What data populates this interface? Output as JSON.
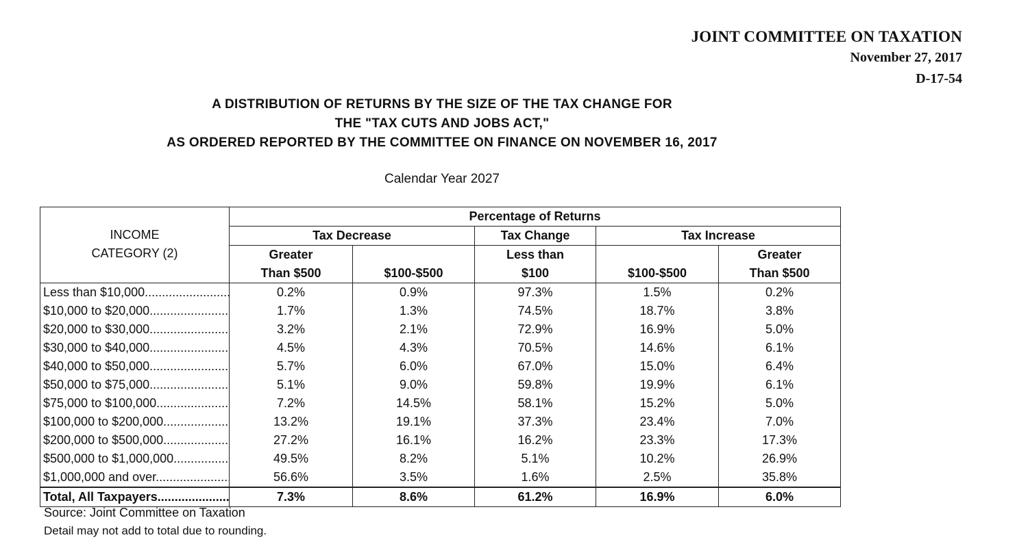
{
  "header": {
    "org": "JOINT COMMITTEE ON TAXATION",
    "date": "November 27, 2017",
    "doc_id": "D-17-54"
  },
  "title": {
    "line1": "A DISTRIBUTION OF RETURNS BY THE SIZE OF THE TAX CHANGE FOR",
    "line2": "THE \"TAX CUTS AND JOBS ACT,\"",
    "line3": "AS ORDERED REPORTED BY THE COMMITTEE ON FINANCE ON NOVEMBER 16, 2017",
    "subtitle": "Calendar Year 2027"
  },
  "table": {
    "income_header_1": "INCOME",
    "income_header_2": "CATEGORY (2)",
    "pct_header": "Percentage of Returns",
    "tax_decrease": "Tax Decrease",
    "tax_change": "Tax Change",
    "tax_increase": "Tax Increase",
    "col1_a": "Greater",
    "col1_b": "Than $500",
    "col2": "$100-$500",
    "col3_a": "Less than",
    "col3_b": "$100",
    "col4": "$100-$500",
    "col5_a": "Greater",
    "col5_b": "Than $500",
    "rows": [
      {
        "category": "Less than $10,000............................",
        "v": [
          "0.2%",
          "0.9%",
          "97.3%",
          "1.5%",
          "0.2%"
        ]
      },
      {
        "category": " $10,000 to $20,000............................",
        "v": [
          "1.7%",
          "1.3%",
          "74.5%",
          "18.7%",
          "3.8%"
        ]
      },
      {
        "category": " $20,000 to $30,000............................",
        "v": [
          "3.2%",
          "2.1%",
          "72.9%",
          "16.9%",
          "5.0%"
        ]
      },
      {
        "category": " $30,000 to $40,000............................",
        "v": [
          "4.5%",
          "4.3%",
          "70.5%",
          "14.6%",
          "6.1%"
        ]
      },
      {
        "category": " $40,000 to $50,000............................",
        "v": [
          "5.7%",
          "6.0%",
          "67.0%",
          "15.0%",
          "6.4%"
        ]
      },
      {
        "category": " $50,000 to $75,000............................",
        "v": [
          "5.1%",
          "9.0%",
          "59.8%",
          "19.9%",
          "6.1%"
        ]
      },
      {
        "category": " $75,000 to $100,000............................",
        "v": [
          "7.2%",
          "14.5%",
          "58.1%",
          "15.2%",
          "5.0%"
        ]
      },
      {
        "category": "$100,000 to $200,000............................",
        "v": [
          "13.2%",
          "19.1%",
          "37.3%",
          "23.4%",
          "7.0%"
        ]
      },
      {
        "category": "$200,000 to $500,000............................",
        "v": [
          "27.2%",
          "16.1%",
          "16.2%",
          "23.3%",
          "17.3%"
        ]
      },
      {
        "category": "$500,000 to $1,000,000............................",
        "v": [
          "49.5%",
          "8.2%",
          "5.1%",
          "10.2%",
          "26.9%"
        ]
      },
      {
        "category": "$1,000,000 and over............................",
        "v": [
          "56.6%",
          "3.5%",
          "1.6%",
          "2.5%",
          "35.8%"
        ]
      }
    ],
    "total": {
      "category": "Total, All Taxpayers............................",
      "v": [
        "7.3%",
        "8.6%",
        "61.2%",
        "16.9%",
        "6.0%"
      ]
    }
  },
  "notes": {
    "source": "Source:  Joint Committee on Taxation",
    "detail": "Detail may not add to total due to rounding."
  }
}
